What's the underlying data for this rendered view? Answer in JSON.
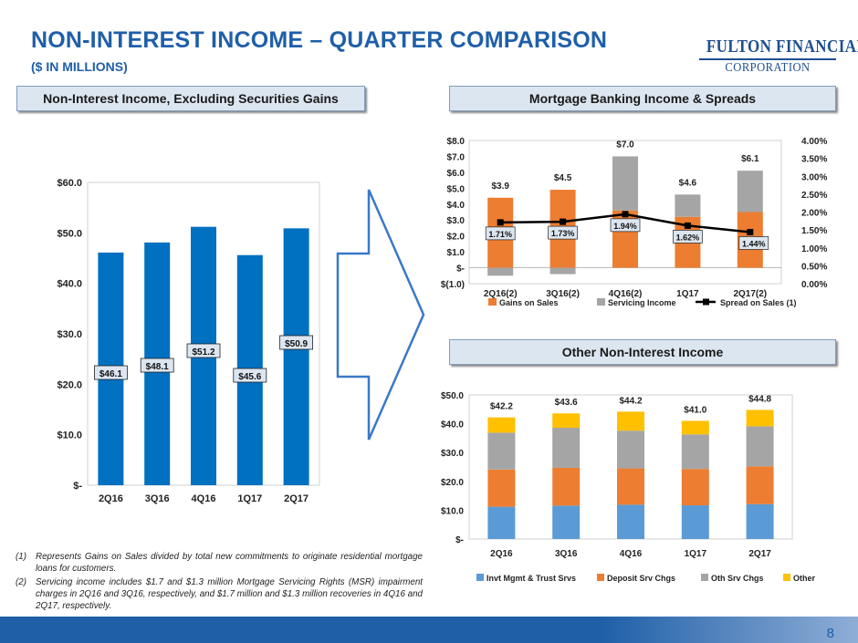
{
  "header": {
    "title": "NON-INTEREST INCOME – QUARTER COMPARISON",
    "subtitle": "($ IN MILLIONS)"
  },
  "logo": {
    "line1": "FULTON FINANCIAL",
    "line2": "CORPORATION"
  },
  "panels": {
    "left": "Non-Interest Income, Excluding Securities Gains",
    "mortgage": "Mortgage Banking Income & Spreads",
    "other": "Other Non-Interest Income"
  },
  "colors": {
    "blue": "#0070c0",
    "orange": "#ed7d31",
    "gray": "#a5a5a5",
    "lightblue": "#5b9bd5",
    "gold": "#ffc000",
    "arrow": "#3a78c9"
  },
  "chart_data": [
    {
      "type": "bar",
      "title": "Non-Interest Income, Excluding Securities Gains",
      "categories": [
        "2Q16",
        "3Q16",
        "4Q16",
        "1Q17",
        "2Q17"
      ],
      "values": [
        46.1,
        48.1,
        51.2,
        45.6,
        50.9
      ],
      "data_labels": [
        "$46.1",
        "$48.1",
        "$51.2",
        "$45.6",
        "$50.9"
      ],
      "y_ticks": [
        "$-",
        "$10.0",
        "$20.0",
        "$30.0",
        "$40.0",
        "$50.0",
        "$60.0"
      ],
      "ylim": [
        0,
        60
      ]
    },
    {
      "type": "bar",
      "title": "Mortgage Banking Income & Spreads",
      "categories": [
        "2Q16(2)",
        "3Q16(2)",
        "4Q16(2)",
        "1Q17",
        "2Q17(2)"
      ],
      "series": [
        {
          "name": "Gains on Sales",
          "values": [
            4.4,
            4.9,
            3.6,
            3.2,
            3.5
          ]
        },
        {
          "name": "Servicing Income",
          "values": [
            -0.5,
            -0.4,
            3.4,
            1.4,
            2.6
          ]
        }
      ],
      "line_series": {
        "name": "Spread on Sales (1)",
        "values": [
          1.71,
          1.73,
          1.94,
          1.62,
          1.44
        ],
        "labels": [
          "1.71%",
          "1.73%",
          "1.94%",
          "1.62%",
          "1.44%"
        ]
      },
      "total_labels": [
        "$3.9",
        "$4.5",
        "$7.0",
        "$4.6",
        "$6.1"
      ],
      "y_ticks": [
        "$(1.0)",
        "$-",
        "$1.0",
        "$2.0",
        "$3.0",
        "$4.0",
        "$5.0",
        "$6.0",
        "$7.0",
        "$8.0"
      ],
      "y2_ticks": [
        "0.00%",
        "0.50%",
        "1.00%",
        "1.50%",
        "2.00%",
        "2.50%",
        "3.00%",
        "3.50%",
        "4.00%"
      ],
      "ylim": [
        -1,
        8
      ],
      "y2lim": [
        0,
        4
      ]
    },
    {
      "type": "bar",
      "title": "Other Non-Interest Income",
      "categories": [
        "2Q16",
        "3Q16",
        "4Q16",
        "1Q17",
        "2Q17"
      ],
      "series": [
        {
          "name": "Invt Mgmt & Trust Srvs",
          "values": [
            11.2,
            11.6,
            11.9,
            11.7,
            12.1
          ]
        },
        {
          "name": "Deposit Srv Chgs",
          "values": [
            12.9,
            13.1,
            12.6,
            12.6,
            13.1
          ]
        },
        {
          "name": "Oth Srv Chgs",
          "values": [
            12.8,
            13.9,
            13.1,
            12.0,
            13.9
          ]
        },
        {
          "name": "Other",
          "values": [
            5.3,
            5.0,
            6.6,
            4.7,
            5.7
          ]
        }
      ],
      "total_labels": [
        "$42.2",
        "$43.6",
        "$44.2",
        "$41.0",
        "$44.8"
      ],
      "y_ticks": [
        "$-",
        "$10.0",
        "$20.0",
        "$30.0",
        "$40.0",
        "$50.0"
      ],
      "ylim": [
        0,
        50
      ]
    }
  ],
  "footnotes": [
    {
      "num": "(1)",
      "text": "Represents Gains on Sales divided by total new commitments to originate residential mortgage loans for customers."
    },
    {
      "num": "(2)",
      "text": "Servicing income includes $1.7 and $1.3 million Mortgage Servicing Rights (MSR) impairment charges in 2Q16 and 3Q16, respectively, and $1.7 million and $1.3 million recoveries in 4Q16 and 2Q17, respectively."
    }
  ],
  "page_number": "8"
}
